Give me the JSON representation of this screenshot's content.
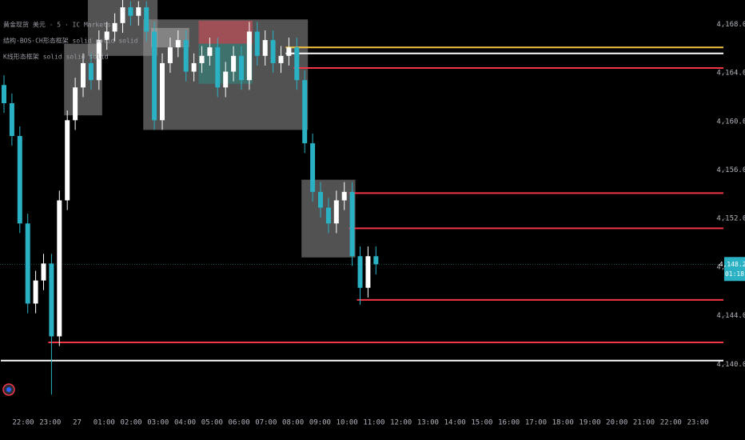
{
  "chart_data": {
    "type": "candlestick",
    "title": "黄金现货 美元 · 5 · IC Markets",
    "indicators": [
      "结构·BOS·CH形态框架 solid solid solid",
      "K线形态框架 solid solid solid"
    ],
    "up_color": "#ffffff",
    "down_color": "#2ab1c4",
    "ylim": [
      4136.4,
      4170.0
    ],
    "yticks": [
      {
        "value": 4140,
        "label": "4,140.00"
      },
      {
        "value": 4144,
        "label": "4,144.00"
      },
      {
        "value": 4148,
        "label": "4,148.00"
      },
      {
        "value": 4152,
        "label": "4,152.00"
      },
      {
        "value": 4156,
        "label": "4,156.00"
      },
      {
        "value": 4160,
        "label": "4,160.00"
      },
      {
        "value": 4164,
        "label": "4,164.00"
      },
      {
        "value": 4168,
        "label": "4,168.00"
      }
    ],
    "xticks": [
      "22:00",
      "23:00",
      "27",
      "01:00",
      "02:00",
      "03:00",
      "04:00",
      "05:00",
      "06:00",
      "07:00",
      "08:00",
      "09:00",
      "10:00",
      "11:00",
      "12:00",
      "13:00",
      "14:00",
      "15:00",
      "16:00",
      "17:00",
      "18:00",
      "19:00",
      "20:00",
      "21:00",
      "22:00",
      "23:00"
    ],
    "open": [
      4163.0,
      4161.5,
      4158.8,
      4151.6,
      4145.0,
      4146.9,
      4148.3,
      4142.3,
      4153.5,
      4160.1,
      4162.8,
      4164.8,
      4163.4,
      4166.7,
      4167.4,
      4168.1,
      4169.4,
      4168.7,
      4169.4,
      4167.4,
      4160.1,
      4164.8,
      4166.1,
      4166.7,
      4164.1,
      4164.8,
      4165.4,
      4166.1,
      4162.8,
      4164.1,
      4165.4,
      4163.4,
      4167.4,
      4165.4,
      4166.7,
      4164.8,
      4165.4,
      4166.1,
      4163.4,
      4158.2,
      4154.2,
      4152.9,
      4151.6,
      4153.5,
      4154.2,
      4148.9,
      4146.3,
      4148.9
    ],
    "high": [
      4163.8,
      4162.3,
      4159.6,
      4152.4,
      4147.7,
      4149.1,
      4149.1,
      4154.3,
      4160.9,
      4163.6,
      4165.6,
      4165.6,
      4167.5,
      4168.2,
      4168.9,
      4170.0,
      4169.9,
      4169.9,
      4169.9,
      4168.2,
      4165.6,
      4166.9,
      4167.5,
      4167.5,
      4165.6,
      4166.2,
      4166.9,
      4166.9,
      4164.9,
      4166.2,
      4166.2,
      4168.2,
      4168.2,
      4167.5,
      4167.5,
      4166.2,
      4166.9,
      4166.9,
      4164.2,
      4159.0,
      4155.0,
      4153.7,
      4154.3,
      4155.0,
      4155.0,
      4149.7,
      4149.7,
      4149.7
    ],
    "low": [
      4160.7,
      4158.0,
      4150.8,
      4144.2,
      4144.2,
      4146.1,
      4137.5,
      4141.5,
      4152.7,
      4159.3,
      4162.0,
      4162.6,
      4162.6,
      4165.9,
      4166.6,
      4167.3,
      4167.9,
      4167.9,
      4166.6,
      4159.3,
      4159.3,
      4164.0,
      4165.3,
      4163.3,
      4163.3,
      4164.0,
      4164.6,
      4162.0,
      4162.0,
      4163.3,
      4162.6,
      4162.6,
      4164.6,
      4164.6,
      4164.0,
      4164.0,
      4164.6,
      4162.6,
      4157.4,
      4153.4,
      4152.1,
      4150.8,
      4150.8,
      4152.7,
      4148.1,
      4144.9,
      4145.5,
      4147.4
    ],
    "close": [
      4161.5,
      4158.8,
      4151.6,
      4145.0,
      4146.9,
      4148.3,
      4142.3,
      4153.5,
      4160.1,
      4162.8,
      4164.8,
      4163.4,
      4166.7,
      4167.4,
      4168.1,
      4169.4,
      4168.7,
      4169.4,
      4167.4,
      4160.1,
      4164.8,
      4166.1,
      4166.7,
      4164.1,
      4164.8,
      4165.4,
      4166.1,
      4162.8,
      4164.1,
      4165.4,
      4163.4,
      4167.4,
      4165.4,
      4166.7,
      4164.8,
      4165.4,
      4166.1,
      4163.4,
      4158.2,
      4154.2,
      4152.9,
      4151.6,
      4153.5,
      4154.2,
      4148.9,
      4146.3,
      4148.9,
      4148.24
    ],
    "zones": [
      {
        "from": 8,
        "to": 12,
        "top": 4166.4,
        "bottom": 4160.5,
        "color": "rgba(150,150,150,0.55)"
      },
      {
        "from": 11,
        "to": 19,
        "top": 4170.0,
        "bottom": 4165.4,
        "color": "rgba(150,150,150,0.55)"
      },
      {
        "from": 18,
        "to": 38,
        "top": 4168.4,
        "bottom": 4159.3,
        "color": "rgba(150,150,150,0.55)"
      },
      {
        "from": 19,
        "to": 23,
        "top": 4167.7,
        "bottom": 4166.1,
        "color": "rgba(190,190,190,0.45)"
      },
      {
        "from": 25,
        "to": 31,
        "top": 4168.3,
        "bottom": 4166.4,
        "color": "rgba(210,80,90,0.6)"
      },
      {
        "from": 25,
        "to": 31,
        "top": 4166.4,
        "bottom": 4163.1,
        "color": "rgba(40,150,140,0.45)"
      },
      {
        "from": 38,
        "to": 44,
        "top": 4155.2,
        "bottom": 4148.8,
        "color": "rgba(150,150,150,0.55)"
      }
    ],
    "levels": [
      {
        "value": 4166.1,
        "from": 36,
        "color": "#f5c542"
      },
      {
        "value": 4165.6,
        "from": 36,
        "color": "#ffffff"
      },
      {
        "value": 4164.4,
        "from": 37,
        "color": "#f23645"
      },
      {
        "value": 4154.1,
        "from": 44,
        "color": "#f23645"
      },
      {
        "value": 4151.2,
        "from": 44,
        "color": "#f23645"
      },
      {
        "value": 4145.3,
        "from": 45,
        "color": "#f23645"
      },
      {
        "value": 4141.8,
        "from": 6,
        "color": "#f23645"
      },
      {
        "value": 4140.3,
        "from": 0,
        "color": "#ffffff"
      }
    ],
    "last_price": {
      "value": 4148.24,
      "label": "4,148.24"
    },
    "countdown": "01:18"
  }
}
